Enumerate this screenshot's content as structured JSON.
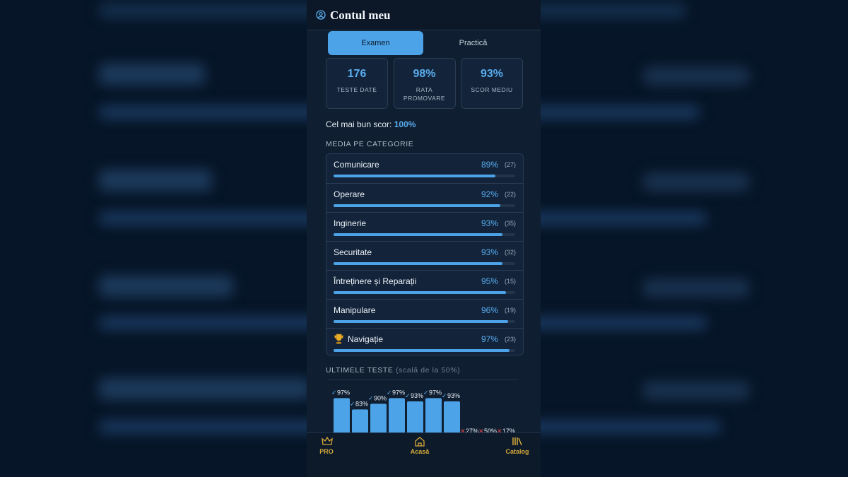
{
  "header": {
    "title": "Contul meu"
  },
  "tabs": [
    "Examen",
    "Practică"
  ],
  "stats": [
    {
      "value": "176",
      "label": "TESTE DATE"
    },
    {
      "value": "98%",
      "label": "RATA PROMOVARE"
    },
    {
      "value": "93%",
      "label": "SCOR MEDIU"
    }
  ],
  "best_score": {
    "label": "Cel mai bun scor:",
    "value": "100%"
  },
  "categories": {
    "title": "MEDIA PE CATEGORIE",
    "items": [
      {
        "name": "Comunicare",
        "value": 89,
        "label": "89%",
        "count": "(27)"
      },
      {
        "name": "Operare",
        "value": 92,
        "label": "92%",
        "count": "(22)"
      },
      {
        "name": "Inginerie",
        "value": 93,
        "label": "93%",
        "count": "(35)"
      },
      {
        "name": "Securitate",
        "value": 93,
        "label": "93%",
        "count": "(32)"
      },
      {
        "name": "Întreținere și Reparații",
        "value": 95,
        "label": "95%",
        "count": "(15)"
      },
      {
        "name": "Manipulare",
        "value": 96,
        "label": "96%",
        "count": "(19)"
      },
      {
        "name": "Navigație",
        "value": 97,
        "label": "97%",
        "count": "(23)",
        "trophy": true
      }
    ]
  },
  "last_tests": {
    "title": "ULTIMELE TESTE",
    "note": "(scală de la 50%)",
    "scale": [
      50,
      100
    ],
    "items": [
      {
        "value": 97,
        "label": "97%",
        "passed": true
      },
      {
        "value": 83,
        "label": "83%",
        "passed": true
      },
      {
        "value": 90,
        "label": "90%",
        "passed": true
      },
      {
        "value": 97,
        "label": "97%",
        "passed": true
      },
      {
        "value": 93,
        "label": "93%",
        "passed": true
      },
      {
        "value": 97,
        "label": "97%",
        "passed": true
      },
      {
        "value": 93,
        "label": "93%",
        "passed": true
      },
      {
        "value": 27,
        "label": "27%",
        "passed": false
      },
      {
        "value": 50,
        "label": "50%",
        "passed": false
      },
      {
        "value": 17,
        "label": "17%",
        "passed": false
      }
    ]
  },
  "nav": [
    "PRO",
    "Acasă",
    "Catalog"
  ]
}
